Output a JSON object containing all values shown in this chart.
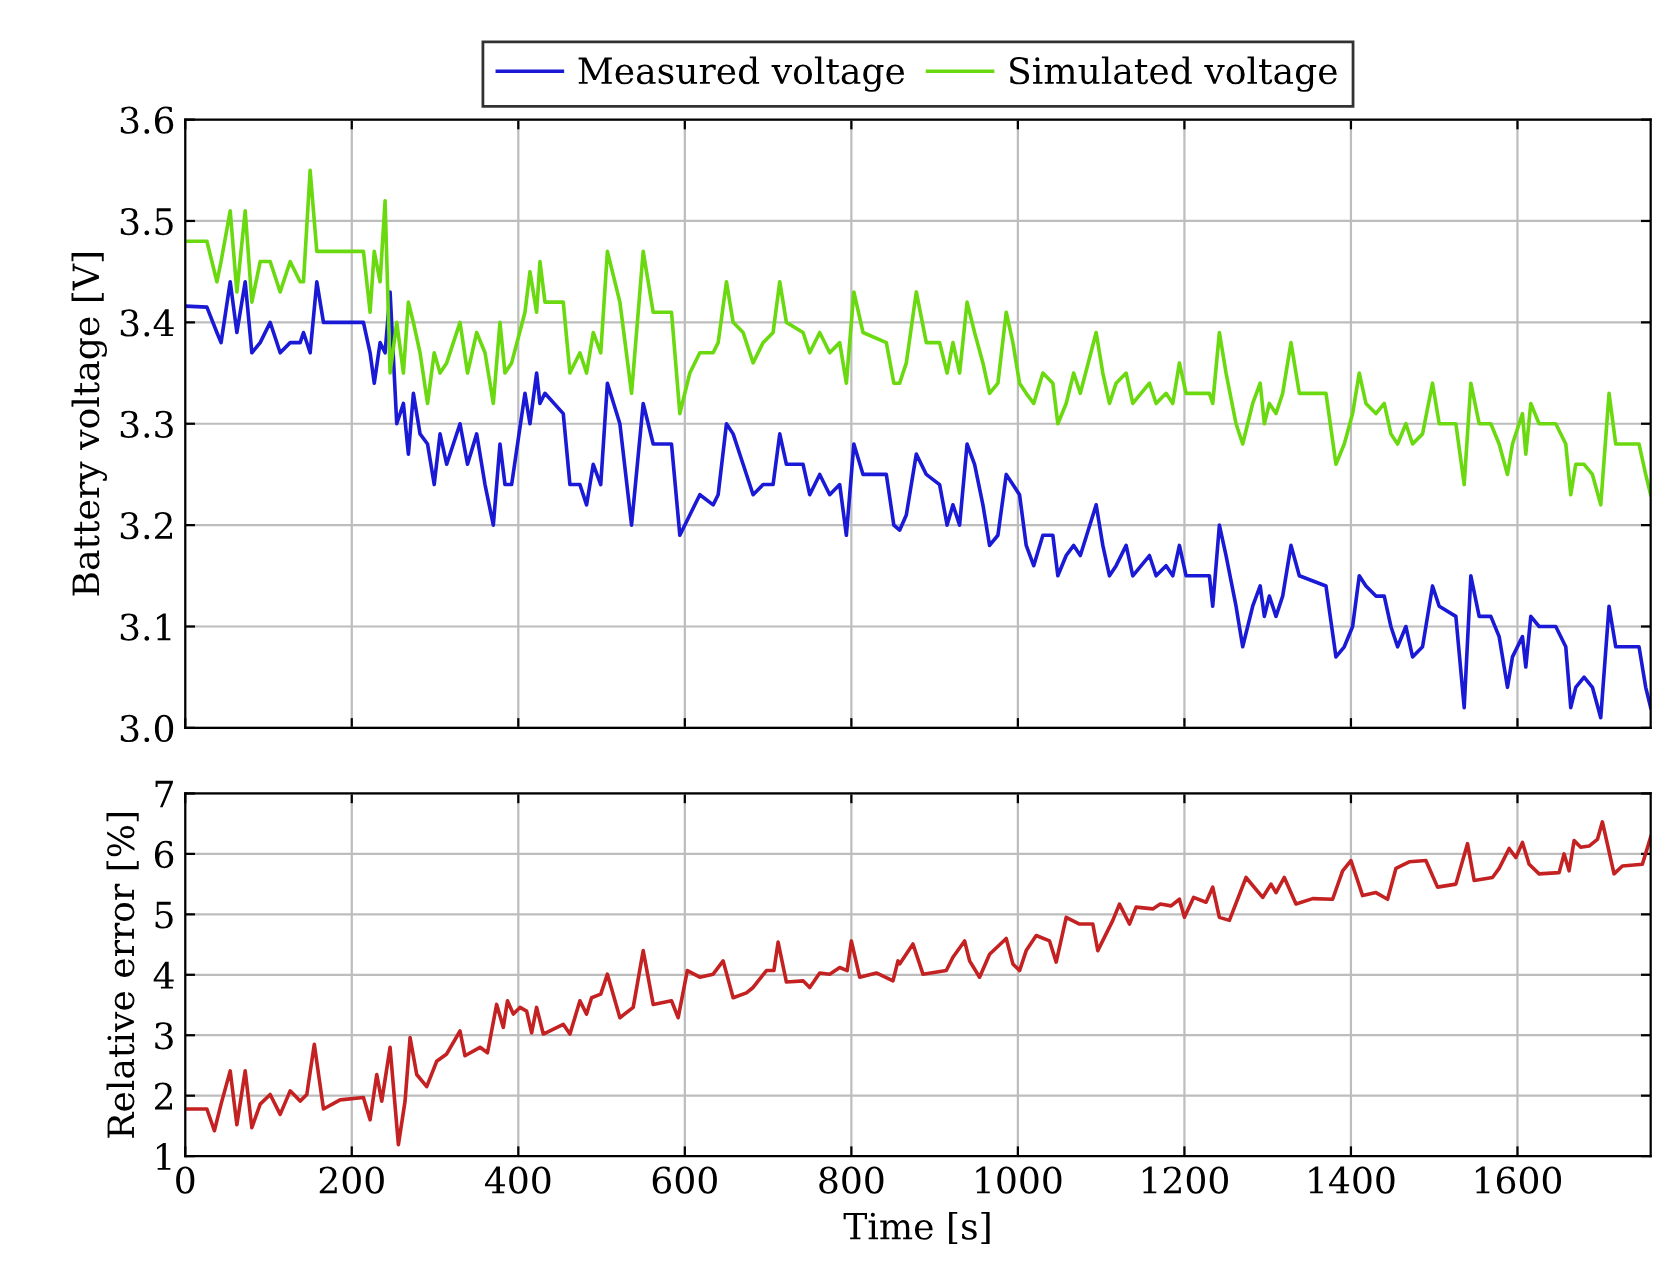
{
  "chart_data": [
    {
      "type": "line",
      "ylabel": "Battery voltage [V]",
      "xlim": [
        0,
        1760
      ],
      "xticks": [
        0,
        200,
        400,
        600,
        800,
        1000,
        1200,
        1400,
        1600
      ],
      "ylim": [
        3.0,
        3.6
      ],
      "yticks": [
        {
          "value": 3.0,
          "label": "3.0"
        },
        3.1,
        3.2,
        3.3,
        3.4,
        3.5,
        3.6
      ],
      "grid": true,
      "legend": "top",
      "tick_labels": "y",
      "marker": "none",
      "line_style": "solid",
      "x": [
        0,
        26,
        38,
        43,
        54,
        62,
        72,
        80,
        90,
        102,
        114,
        126,
        138,
        142,
        150,
        158,
        166,
        214,
        222,
        227,
        234,
        240,
        246,
        254,
        262,
        268,
        274,
        282,
        291,
        299,
        306,
        314,
        330,
        339,
        350,
        360,
        370,
        378,
        384,
        392,
        408,
        414,
        422,
        426,
        432,
        454,
        462,
        474,
        482,
        490,
        499,
        507,
        522,
        536,
        550,
        562,
        584,
        594,
        606,
        618,
        634,
        640,
        650,
        658,
        670,
        682,
        694,
        706,
        714,
        722,
        742,
        750,
        762,
        774,
        786,
        794,
        803,
        814,
        842,
        851,
        858,
        866,
        878,
        890,
        906,
        915,
        922,
        930,
        939,
        948,
        958,
        966,
        976,
        986,
        994,
        1002,
        1010,
        1019,
        1030,
        1042,
        1048,
        1058,
        1067,
        1075,
        1094,
        1102,
        1110,
        1118,
        1130,
        1138,
        1158,
        1166,
        1178,
        1186,
        1194,
        1202,
        1214,
        1222,
        1230,
        1234,
        1242,
        1250,
        1262,
        1270,
        1282,
        1291,
        1296,
        1302,
        1310,
        1318,
        1328,
        1338,
        1370,
        1382,
        1392,
        1402,
        1410,
        1418,
        1430,
        1440,
        1448,
        1456,
        1466,
        1474,
        1486,
        1498,
        1506,
        1526,
        1536,
        1544,
        1554,
        1568,
        1578,
        1588,
        1594,
        1606,
        1610,
        1616,
        1626,
        1646,
        1658,
        1664,
        1670,
        1680,
        1690,
        1700,
        1710,
        1718,
        1746,
        1754,
        1760
      ],
      "series": [
        {
          "name": "Measured voltage",
          "color": "#1a1ad6",
          "values": [
            3.416,
            3.415,
            3.39,
            3.38,
            3.44,
            3.39,
            3.44,
            3.37,
            3.38,
            3.4,
            3.37,
            3.38,
            3.38,
            3.39,
            3.37,
            3.44,
            3.4,
            3.4,
            3.37,
            3.34,
            3.38,
            3.37,
            3.43,
            3.3,
            3.32,
            3.27,
            3.33,
            3.29,
            3.28,
            3.24,
            3.29,
            3.26,
            3.3,
            3.26,
            3.29,
            3.24,
            3.2,
            3.28,
            3.24,
            3.24,
            3.33,
            3.3,
            3.35,
            3.32,
            3.33,
            3.31,
            3.24,
            3.24,
            3.22,
            3.26,
            3.24,
            3.34,
            3.3,
            3.2,
            3.32,
            3.28,
            3.28,
            3.19,
            3.21,
            3.23,
            3.22,
            3.23,
            3.3,
            3.29,
            3.26,
            3.23,
            3.24,
            3.24,
            3.29,
            3.26,
            3.26,
            3.23,
            3.25,
            3.23,
            3.24,
            3.19,
            3.28,
            3.25,
            3.25,
            3.2,
            3.195,
            3.21,
            3.27,
            3.25,
            3.24,
            3.2,
            3.22,
            3.2,
            3.28,
            3.26,
            3.22,
            3.18,
            3.19,
            3.25,
            3.24,
            3.23,
            3.18,
            3.16,
            3.19,
            3.19,
            3.15,
            3.17,
            3.18,
            3.17,
            3.22,
            3.18,
            3.15,
            3.16,
            3.18,
            3.15,
            3.17,
            3.15,
            3.16,
            3.15,
            3.18,
            3.15,
            3.15,
            3.15,
            3.15,
            3.12,
            3.2,
            3.17,
            3.12,
            3.08,
            3.12,
            3.14,
            3.11,
            3.13,
            3.11,
            3.13,
            3.18,
            3.15,
            3.14,
            3.07,
            3.08,
            3.1,
            3.15,
            3.14,
            3.13,
            3.13,
            3.1,
            3.08,
            3.1,
            3.07,
            3.08,
            3.14,
            3.12,
            3.11,
            3.02,
            3.15,
            3.11,
            3.11,
            3.09,
            3.04,
            3.07,
            3.09,
            3.06,
            3.11,
            3.1,
            3.1,
            3.08,
            3.02,
            3.04,
            3.05,
            3.04,
            3.01,
            3.12,
            3.08,
            3.08,
            3.04,
            3.02
          ]
        },
        {
          "name": "Simulated voltage",
          "color": "#6ad90f",
          "values": [
            3.48,
            3.48,
            3.44,
            3.46,
            3.51,
            3.43,
            3.51,
            3.42,
            3.46,
            3.46,
            3.43,
            3.46,
            3.44,
            3.44,
            3.55,
            3.47,
            3.47,
            3.47,
            3.41,
            3.47,
            3.44,
            3.52,
            3.35,
            3.4,
            3.35,
            3.42,
            3.4,
            3.37,
            3.32,
            3.37,
            3.35,
            3.36,
            3.4,
            3.35,
            3.39,
            3.37,
            3.32,
            3.4,
            3.35,
            3.36,
            3.41,
            3.45,
            3.41,
            3.46,
            3.42,
            3.42,
            3.35,
            3.37,
            3.35,
            3.39,
            3.37,
            3.47,
            3.42,
            3.33,
            3.47,
            3.41,
            3.41,
            3.31,
            3.35,
            3.37,
            3.37,
            3.38,
            3.44,
            3.4,
            3.39,
            3.36,
            3.38,
            3.39,
            3.44,
            3.4,
            3.39,
            3.37,
            3.39,
            3.37,
            3.38,
            3.34,
            3.43,
            3.39,
            3.38,
            3.34,
            3.34,
            3.36,
            3.43,
            3.38,
            3.38,
            3.35,
            3.38,
            3.35,
            3.42,
            3.39,
            3.36,
            3.33,
            3.34,
            3.41,
            3.38,
            3.34,
            3.33,
            3.32,
            3.35,
            3.34,
            3.3,
            3.32,
            3.35,
            3.33,
            3.39,
            3.35,
            3.32,
            3.34,
            3.35,
            3.32,
            3.34,
            3.32,
            3.33,
            3.32,
            3.36,
            3.33,
            3.33,
            3.33,
            3.33,
            3.32,
            3.39,
            3.35,
            3.3,
            3.28,
            3.32,
            3.34,
            3.3,
            3.32,
            3.31,
            3.33,
            3.38,
            3.33,
            3.33,
            3.26,
            3.28,
            3.31,
            3.35,
            3.32,
            3.31,
            3.32,
            3.29,
            3.28,
            3.3,
            3.28,
            3.29,
            3.34,
            3.3,
            3.3,
            3.24,
            3.34,
            3.3,
            3.3,
            3.28,
            3.25,
            3.28,
            3.31,
            3.27,
            3.32,
            3.3,
            3.3,
            3.28,
            3.23,
            3.26,
            3.26,
            3.25,
            3.22,
            3.33,
            3.28,
            3.28,
            3.25,
            3.23
          ]
        }
      ]
    },
    {
      "type": "line",
      "xlabel": "Time [s]",
      "ylabel": "Relative error [%]",
      "xlim": [
        0,
        1760
      ],
      "xticks": [
        0,
        200,
        400,
        600,
        800,
        1000,
        1200,
        1400,
        1600
      ],
      "ylim": [
        1,
        7
      ],
      "yticks": [
        1,
        2,
        3,
        4,
        5,
        6,
        7
      ],
      "grid": true,
      "marker": "none",
      "line_style": "solid",
      "series": [
        {
          "color": "#c42222",
          "x": [
            0,
            26,
            35,
            43,
            54,
            62,
            72,
            80,
            90,
            102,
            114,
            126,
            138,
            146,
            155,
            166,
            186,
            214,
            222,
            230,
            236,
            246,
            256,
            264,
            270,
            278,
            290,
            302,
            314,
            330,
            336,
            354,
            363,
            374,
            382,
            387,
            394,
            402,
            410,
            416,
            422,
            430,
            454,
            462,
            474,
            482,
            488,
            499,
            507,
            522,
            538,
            550,
            562,
            584,
            592,
            603,
            618,
            634,
            646,
            658,
            674,
            682,
            698,
            707,
            712,
            722,
            742,
            750,
            762,
            774,
            786,
            795,
            800,
            810,
            830,
            850,
            856,
            858,
            874,
            886,
            914,
            922,
            936,
            942,
            954,
            966,
            986,
            994,
            1002,
            1010,
            1022,
            1038,
            1046,
            1058,
            1074,
            1090,
            1096,
            1114,
            1122,
            1134,
            1142,
            1162,
            1171,
            1184,
            1194,
            1200,
            1211,
            1226,
            1234,
            1242,
            1254,
            1274,
            1294,
            1304,
            1310,
            1320,
            1334,
            1354,
            1378,
            1390,
            1400,
            1414,
            1430,
            1444,
            1454,
            1470,
            1490,
            1504,
            1526,
            1540,
            1548,
            1570,
            1578,
            1590,
            1598,
            1606,
            1614,
            1626,
            1650,
            1656,
            1662,
            1668,
            1676,
            1686,
            1696,
            1702,
            1716,
            1726,
            1750,
            1760
          ],
          "values": [
            1.78,
            1.78,
            1.42,
            1.86,
            2.41,
            1.52,
            2.41,
            1.47,
            1.86,
            2.02,
            1.69,
            2.08,
            1.91,
            2.02,
            2.85,
            1.78,
            1.93,
            1.97,
            1.6,
            2.35,
            1.91,
            2.8,
            1.19,
            1.91,
            2.96,
            2.35,
            2.15,
            2.57,
            2.69,
            3.07,
            2.66,
            2.8,
            2.71,
            3.51,
            3.13,
            3.57,
            3.35,
            3.46,
            3.4,
            3.04,
            3.46,
            3.02,
            3.18,
            3.02,
            3.57,
            3.35,
            3.62,
            3.68,
            4.01,
            3.29,
            3.46,
            4.4,
            3.51,
            3.57,
            3.29,
            4.07,
            3.96,
            4.01,
            4.23,
            3.62,
            3.7,
            3.79,
            4.07,
            4.07,
            4.54,
            3.88,
            3.9,
            3.79,
            4.03,
            4.01,
            4.12,
            4.07,
            4.56,
            3.96,
            4.03,
            3.9,
            4.23,
            4.18,
            4.51,
            4.01,
            4.07,
            4.29,
            4.56,
            4.23,
            3.96,
            4.34,
            4.6,
            4.18,
            4.07,
            4.4,
            4.65,
            4.56,
            4.21,
            4.95,
            4.84,
            4.84,
            4.4,
            4.9,
            5.17,
            4.84,
            5.12,
            5.09,
            5.17,
            5.14,
            5.25,
            4.95,
            5.28,
            5.2,
            5.45,
            4.95,
            4.9,
            5.61,
            5.28,
            5.5,
            5.36,
            5.61,
            5.17,
            5.26,
            5.25,
            5.72,
            5.89,
            5.31,
            5.36,
            5.25,
            5.76,
            5.87,
            5.89,
            5.45,
            5.5,
            6.17,
            5.56,
            5.61,
            5.76,
            6.09,
            5.94,
            6.19,
            5.83,
            5.67,
            5.69,
            6.0,
            5.72,
            6.22,
            6.11,
            6.13,
            6.24,
            6.53,
            5.67,
            5.8,
            5.83,
            6.28
          ]
        }
      ]
    }
  ]
}
